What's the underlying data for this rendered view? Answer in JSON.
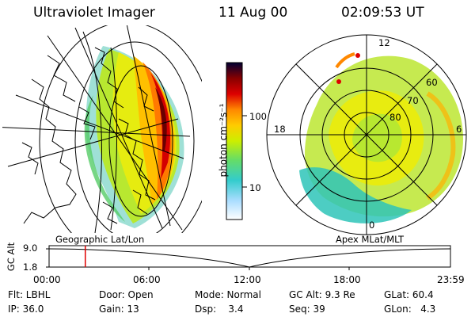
{
  "header": {
    "instrument": "Ultraviolet Imager",
    "date": "11 Aug 00",
    "time": "02:09:53 UT"
  },
  "colorbar": {
    "unit_label": "photon cm⁻²s⁻¹",
    "ticks": [
      "100",
      "10"
    ]
  },
  "left_panel": {
    "caption": "Geographic Lat/Lon"
  },
  "right_panel": {
    "caption": "Apex MLat/MLT",
    "mlt_labels": [
      "12",
      "18",
      "6",
      "0"
    ],
    "lat_labels": [
      "60",
      "70",
      "80"
    ]
  },
  "timeline": {
    "axis_label": "GC Alt",
    "y_ticks": [
      "9.0",
      "1.8"
    ],
    "x_ticks": [
      "00:00",
      "06:00",
      "12:00",
      "18:00",
      "23:59"
    ],
    "current_time_fraction": 0.0902
  },
  "info": {
    "col1": [
      "Flt: LBHL",
      "IP: 36.0"
    ],
    "col2": [
      "Door: Open",
      "Gain: 13"
    ],
    "col3": [
      "Mode: Normal",
      "Dsp:    3.4"
    ],
    "col4": [
      "GC Alt: 9.3 Re",
      "Seq: 39"
    ],
    "col5": [
      "GLat: 60.4",
      "GLon:   4.3"
    ]
  },
  "colors": {
    "marker": "#e00000",
    "colorscale": [
      "#ffffff",
      "#aaddff",
      "#33cccc",
      "#66dd66",
      "#ccee00",
      "#ffcc00",
      "#ff8800",
      "#dd0000",
      "#880000",
      "#000033"
    ]
  }
}
